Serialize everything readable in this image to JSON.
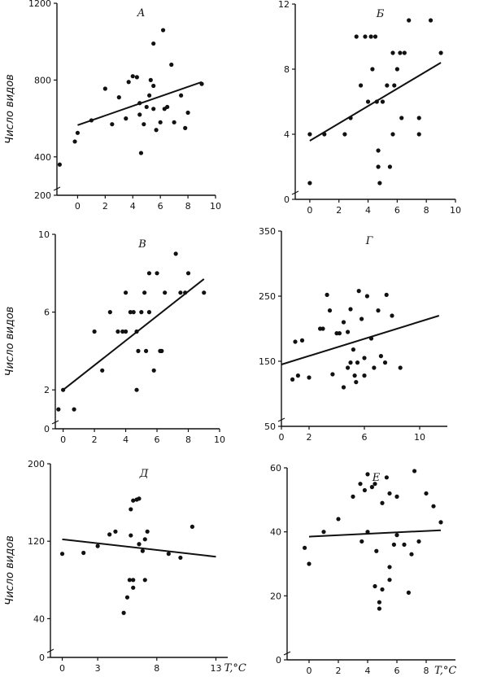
{
  "figure": {
    "ylabel": "Число видов"
  },
  "chart_data": [
    {
      "type": "scatter",
      "title": "А",
      "xlabel": "",
      "ylabel": "Число видов",
      "xlim": [
        -1.5,
        10
      ],
      "ylim": [
        200,
        1200
      ],
      "xticks": [
        0,
        2,
        4,
        6,
        8,
        10
      ],
      "yticks": [
        200,
        400,
        800,
        1200
      ],
      "points": [
        [
          -1.3,
          360
        ],
        [
          -0.2,
          480
        ],
        [
          0,
          525
        ],
        [
          1,
          590
        ],
        [
          2,
          755
        ],
        [
          2.5,
          570
        ],
        [
          3,
          710
        ],
        [
          3.5,
          600
        ],
        [
          3.7,
          790
        ],
        [
          4,
          820
        ],
        [
          4.3,
          815
        ],
        [
          4.5,
          620
        ],
        [
          4.5,
          680
        ],
        [
          4.6,
          420
        ],
        [
          4.8,
          570
        ],
        [
          5,
          660
        ],
        [
          5.2,
          720
        ],
        [
          5.5,
          990
        ],
        [
          5.3,
          800
        ],
        [
          5.5,
          770
        ],
        [
          5.5,
          650
        ],
        [
          5.7,
          540
        ],
        [
          6.2,
          1060
        ],
        [
          6,
          580
        ],
        [
          6.3,
          650
        ],
        [
          6.5,
          660
        ],
        [
          6.8,
          880
        ],
        [
          7,
          580
        ],
        [
          7.5,
          720
        ],
        [
          7.8,
          550
        ],
        [
          8,
          630
        ],
        [
          9,
          780
        ]
      ],
      "trend": [
        [
          0,
          565
        ],
        [
          9,
          790
        ]
      ]
    },
    {
      "type": "scatter",
      "title": "Б",
      "xlabel": "",
      "ylabel": "",
      "xlim": [
        -1,
        10
      ],
      "ylim": [
        0,
        12
      ],
      "xticks": [
        0,
        2,
        4,
        6,
        8,
        10
      ],
      "yticks": [
        0,
        4,
        8,
        12
      ],
      "points": [
        [
          0,
          4
        ],
        [
          0,
          1
        ],
        [
          1,
          4
        ],
        [
          2.4,
          4
        ],
        [
          2.8,
          5
        ],
        [
          3.2,
          10
        ],
        [
          3.5,
          7
        ],
        [
          3.8,
          10
        ],
        [
          4,
          6
        ],
        [
          4.2,
          10
        ],
        [
          4.5,
          10
        ],
        [
          4.3,
          8
        ],
        [
          4.6,
          6
        ],
        [
          4.7,
          3
        ],
        [
          4.8,
          1
        ],
        [
          4.7,
          2
        ],
        [
          5,
          6
        ],
        [
          5.3,
          7
        ],
        [
          5.5,
          2
        ],
        [
          5.7,
          9
        ],
        [
          5.7,
          4
        ],
        [
          5.8,
          7
        ],
        [
          6,
          8
        ],
        [
          6.2,
          9
        ],
        [
          6.3,
          5
        ],
        [
          6.5,
          9
        ],
        [
          6.8,
          11
        ],
        [
          7.5,
          5
        ],
        [
          7.5,
          4
        ],
        [
          8.3,
          11
        ],
        [
          9,
          9
        ]
      ],
      "trend": [
        [
          0,
          3.6
        ],
        [
          9,
          8.4
        ]
      ]
    },
    {
      "type": "scatter",
      "title": "В",
      "xlabel": "",
      "ylabel": "Число видов",
      "xlim": [
        -0.5,
        10
      ],
      "ylim": [
        0,
        10
      ],
      "xticks": [
        0,
        2,
        4,
        6,
        8,
        10
      ],
      "yticks": [
        0,
        2,
        6,
        10
      ],
      "points": [
        [
          -0.3,
          1
        ],
        [
          0,
          2
        ],
        [
          0.7,
          1
        ],
        [
          2,
          5
        ],
        [
          2.5,
          3
        ],
        [
          3,
          6
        ],
        [
          3.5,
          5
        ],
        [
          3.8,
          5
        ],
        [
          4,
          5
        ],
        [
          4,
          7
        ],
        [
          4.3,
          6
        ],
        [
          4.5,
          6
        ],
        [
          4.7,
          5
        ],
        [
          4.7,
          2
        ],
        [
          4.8,
          4
        ],
        [
          5,
          6
        ],
        [
          5.2,
          7
        ],
        [
          5.3,
          4
        ],
        [
          5.5,
          6
        ],
        [
          5.5,
          8
        ],
        [
          5.8,
          3
        ],
        [
          6,
          8
        ],
        [
          6.2,
          4
        ],
        [
          6.3,
          4
        ],
        [
          6.5,
          7
        ],
        [
          7.2,
          9
        ],
        [
          7.5,
          7
        ],
        [
          7.8,
          7
        ],
        [
          8,
          8
        ],
        [
          9,
          7
        ]
      ],
      "trend": [
        [
          0,
          2
        ],
        [
          9,
          7.7
        ]
      ]
    },
    {
      "type": "scatter",
      "title": "Г",
      "xlabel": "",
      "ylabel": "",
      "xlim": [
        0,
        12
      ],
      "ylim": [
        50,
        350
      ],
      "xticks": [
        0,
        2,
        6,
        10
      ],
      "yticks": [
        50,
        150,
        250,
        350
      ],
      "points": [
        [
          0.8,
          122
        ],
        [
          1,
          180
        ],
        [
          1.2,
          128
        ],
        [
          1.5,
          182
        ],
        [
          2,
          125
        ],
        [
          2.8,
          200
        ],
        [
          3,
          200
        ],
        [
          3.3,
          252
        ],
        [
          3.5,
          228
        ],
        [
          3.7,
          130
        ],
        [
          4,
          193
        ],
        [
          4.2,
          193
        ],
        [
          4.5,
          110
        ],
        [
          4.5,
          210
        ],
        [
          4.8,
          195
        ],
        [
          4.8,
          140
        ],
        [
          5,
          230
        ],
        [
          5,
          148
        ],
        [
          5.2,
          168
        ],
        [
          5.3,
          128
        ],
        [
          5.4,
          118
        ],
        [
          5.5,
          148
        ],
        [
          5.6,
          258
        ],
        [
          5.8,
          215
        ],
        [
          6,
          155
        ],
        [
          6,
          128
        ],
        [
          6.2,
          250
        ],
        [
          6.5,
          185
        ],
        [
          6.7,
          140
        ],
        [
          7,
          228
        ],
        [
          7.2,
          158
        ],
        [
          7.5,
          148
        ],
        [
          7.6,
          252
        ],
        [
          8,
          220
        ],
        [
          8.6,
          140
        ]
      ],
      "trend": [
        [
          0,
          145
        ],
        [
          11.4,
          220
        ]
      ]
    },
    {
      "type": "scatter",
      "title": "Д",
      "xlabel": "T,°C",
      "ylabel": "Число видов",
      "xlim": [
        -1,
        14
      ],
      "ylim": [
        0,
        200
      ],
      "xticks": [
        0,
        3,
        8,
        13
      ],
      "xtick_labels": [
        "0",
        "3",
        "8",
        "13"
      ],
      "yticks": [
        0,
        40,
        120,
        200
      ],
      "points": [
        [
          0,
          107
        ],
        [
          1.8,
          108
        ],
        [
          3,
          115
        ],
        [
          4,
          127
        ],
        [
          4.5,
          130
        ],
        [
          5.2,
          46
        ],
        [
          5.5,
          62
        ],
        [
          5.8,
          126
        ],
        [
          5.8,
          153
        ],
        [
          6,
          162
        ],
        [
          6,
          72
        ],
        [
          5.7,
          80
        ],
        [
          6,
          80
        ],
        [
          6.3,
          163
        ],
        [
          6.5,
          117
        ],
        [
          6.5,
          164
        ],
        [
          6.8,
          110
        ],
        [
          7,
          80
        ],
        [
          7,
          122
        ],
        [
          7.2,
          130
        ],
        [
          9,
          107
        ],
        [
          10,
          103
        ],
        [
          11,
          135
        ]
      ],
      "trend": [
        [
          0,
          122
        ],
        [
          13,
          104
        ]
      ]
    },
    {
      "type": "scatter",
      "title": "Е",
      "xlabel": "T,°C",
      "ylabel": "",
      "xlim": [
        -1.5,
        10
      ],
      "ylim": [
        0,
        60
      ],
      "xticks": [
        0,
        2,
        4,
        6,
        8
      ],
      "yticks": [
        0,
        20,
        40,
        60
      ],
      "points": [
        [
          -0.3,
          35
        ],
        [
          0,
          30
        ],
        [
          1,
          40
        ],
        [
          2,
          44
        ],
        [
          3,
          51
        ],
        [
          3.5,
          55
        ],
        [
          3.6,
          37
        ],
        [
          3.8,
          53
        ],
        [
          4,
          40
        ],
        [
          4,
          58
        ],
        [
          4.3,
          54
        ],
        [
          4.5,
          55
        ],
        [
          4.5,
          23
        ],
        [
          4.6,
          34
        ],
        [
          4.8,
          16
        ],
        [
          4.8,
          18
        ],
        [
          5,
          22
        ],
        [
          5,
          49
        ],
        [
          5.3,
          57
        ],
        [
          5.5,
          52
        ],
        [
          5.5,
          29
        ],
        [
          5.5,
          25
        ],
        [
          5.8,
          36
        ],
        [
          6,
          39
        ],
        [
          6,
          51
        ],
        [
          6.5,
          36
        ],
        [
          6.8,
          21
        ],
        [
          7,
          33
        ],
        [
          7.2,
          59
        ],
        [
          7.5,
          37
        ],
        [
          8,
          52
        ],
        [
          8.5,
          48
        ],
        [
          9,
          43
        ]
      ],
      "trend": [
        [
          0,
          38.5
        ],
        [
          9,
          40.5
        ]
      ]
    }
  ]
}
